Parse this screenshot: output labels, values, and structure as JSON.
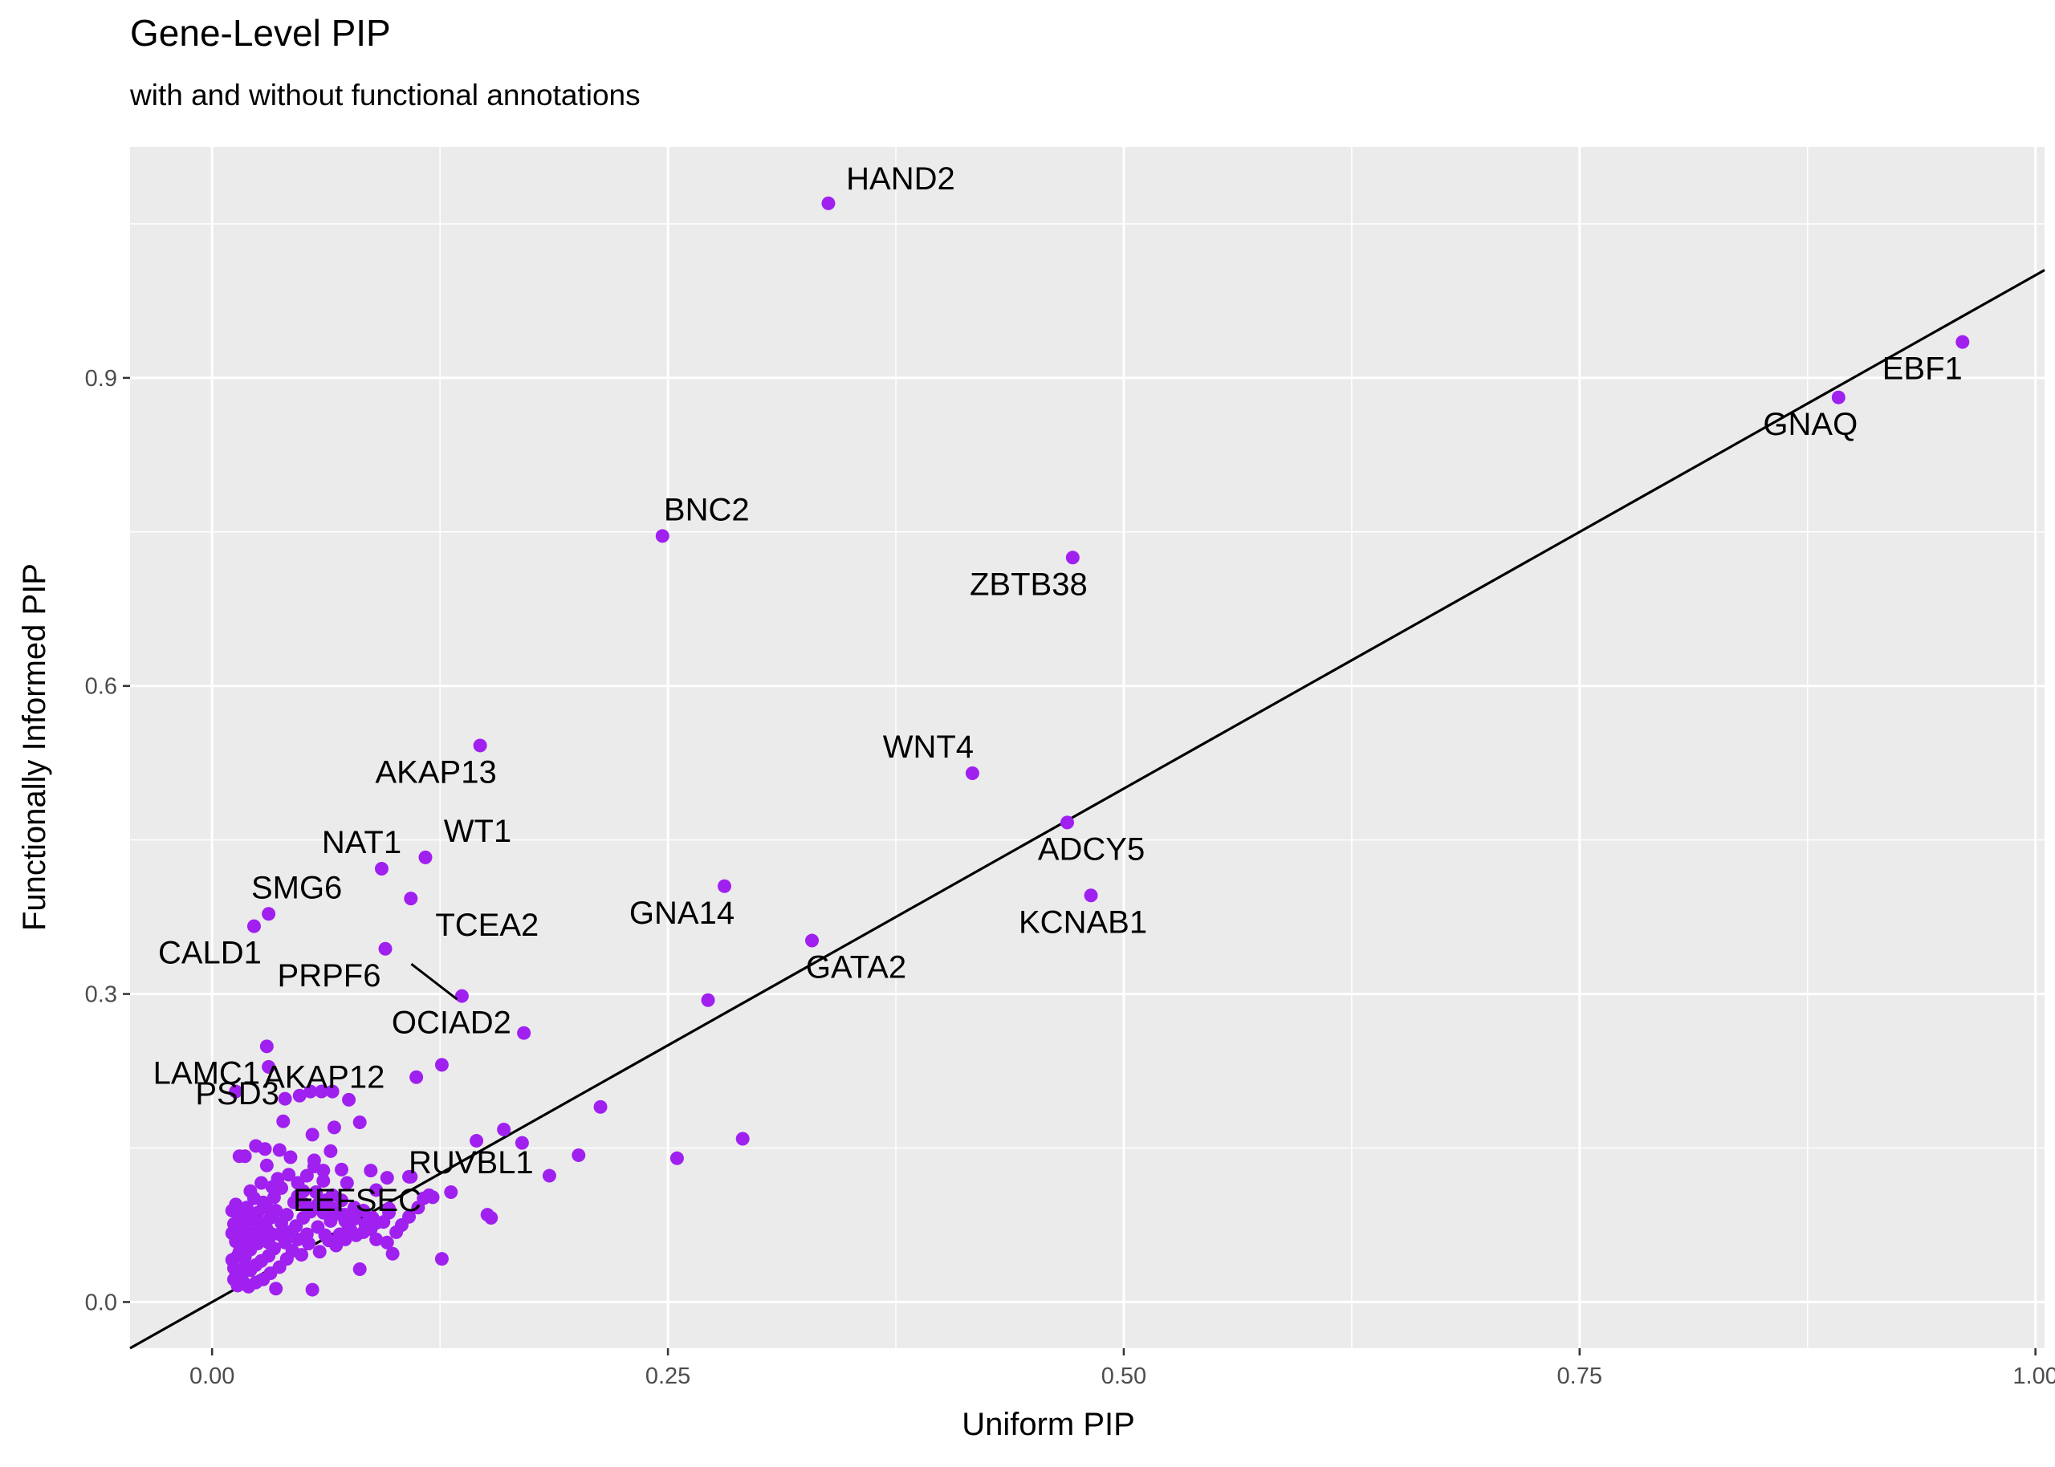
{
  "chart_data": {
    "type": "scatter",
    "title": "Gene-Level PIP",
    "subtitle": "with and without functional annotations",
    "xlabel": "Uniform PIP",
    "ylabel": "Functionally Informed PIP",
    "xlim": [
      -0.045,
      1.005
    ],
    "ylim": [
      -0.045,
      1.125
    ],
    "xticks": [
      0.0,
      0.25,
      0.5,
      0.75,
      1.0
    ],
    "xtick_labels": [
      "0.00",
      "0.25",
      "0.50",
      "0.75",
      "1.00"
    ],
    "yticks": [
      0.0,
      0.3,
      0.6,
      0.9
    ],
    "ytick_labels": [
      "0.0",
      "0.3",
      "0.6",
      "0.9"
    ],
    "grid": true,
    "point_color": "#A020F0",
    "reference_line": {
      "slope": 1,
      "intercept": 0,
      "color": "#000000"
    },
    "labeled_points": [
      {
        "label": "HAND2",
        "x": 0.338,
        "y": 1.07
      },
      {
        "label": "EBF1",
        "x": 0.96,
        "y": 0.935
      },
      {
        "label": "GNAQ",
        "x": 0.892,
        "y": 0.881
      },
      {
        "label": "BNC2",
        "x": 0.247,
        "y": 0.746
      },
      {
        "label": "ZBTB38",
        "x": 0.472,
        "y": 0.725
      },
      {
        "label": "AKAP13",
        "x": 0.147,
        "y": 0.542
      },
      {
        "label": "WNT4",
        "x": 0.417,
        "y": 0.515
      },
      {
        "label": "ADCY5",
        "x": 0.469,
        "y": 0.467
      },
      {
        "label": "NAT1",
        "x": 0.093,
        "y": 0.422
      },
      {
        "label": "WT1",
        "x": 0.117,
        "y": 0.433
      },
      {
        "label": "TCEA2",
        "x": 0.109,
        "y": 0.393
      },
      {
        "label": "GNA14",
        "x": 0.281,
        "y": 0.405
      },
      {
        "label": "KCNAB1",
        "x": 0.482,
        "y": 0.396
      },
      {
        "label": "SMG6",
        "x": 0.031,
        "y": 0.378
      },
      {
        "label": "CALD1",
        "x": 0.023,
        "y": 0.366
      },
      {
        "label": "PRPF6",
        "x": 0.095,
        "y": 0.344
      },
      {
        "label": "GATA2",
        "x": 0.329,
        "y": 0.352
      },
      {
        "label": "OCIAD2",
        "x": 0.137,
        "y": 0.298
      },
      {
        "label": "LAMC1",
        "x": 0.03,
        "y": 0.249
      },
      {
        "label": "PSD3",
        "x": 0.031,
        "y": 0.229
      },
      {
        "label": "AKAP12",
        "x": 0.013,
        "y": 0.205
      },
      {
        "label": "RUVBL1",
        "x": 0.109,
        "y": 0.122
      },
      {
        "label": "EEFSEC",
        "x": 0.073,
        "y": 0.085
      }
    ],
    "points": [
      [
        0.171,
        0.262
      ],
      [
        0.272,
        0.294
      ],
      [
        0.126,
        0.231
      ],
      [
        0.112,
        0.219
      ],
      [
        0.213,
        0.19
      ],
      [
        0.291,
        0.159
      ],
      [
        0.255,
        0.14
      ],
      [
        0.201,
        0.143
      ],
      [
        0.185,
        0.123
      ],
      [
        0.16,
        0.168
      ],
      [
        0.145,
        0.157
      ],
      [
        0.17,
        0.155
      ],
      [
        0.151,
        0.085
      ],
      [
        0.153,
        0.082
      ],
      [
        0.131,
        0.107
      ],
      [
        0.121,
        0.102
      ],
      [
        0.116,
        0.101
      ],
      [
        0.097,
        0.091
      ],
      [
        0.108,
        0.122
      ],
      [
        0.126,
        0.042
      ],
      [
        0.099,
        0.047
      ],
      [
        0.081,
        0.032
      ],
      [
        0.055,
        0.012
      ],
      [
        0.035,
        0.013
      ],
      [
        0.087,
        0.128
      ],
      [
        0.096,
        0.121
      ],
      [
        0.09,
        0.109
      ],
      [
        0.081,
        0.175
      ],
      [
        0.075,
        0.197
      ],
      [
        0.066,
        0.205
      ],
      [
        0.067,
        0.17
      ],
      [
        0.055,
        0.163
      ],
      [
        0.065,
        0.147
      ],
      [
        0.056,
        0.132
      ],
      [
        0.052,
        0.123
      ],
      [
        0.061,
        0.128
      ],
      [
        0.071,
        0.129
      ],
      [
        0.074,
        0.116
      ],
      [
        0.066,
        0.104
      ],
      [
        0.071,
        0.099
      ],
      [
        0.078,
        0.092
      ],
      [
        0.083,
        0.089
      ],
      [
        0.088,
        0.082
      ],
      [
        0.09,
        0.077
      ],
      [
        0.083,
        0.068
      ],
      [
        0.076,
        0.07
      ],
      [
        0.073,
        0.061
      ],
      [
        0.068,
        0.055
      ],
      [
        0.062,
        0.065
      ],
      [
        0.059,
        0.049
      ],
      [
        0.053,
        0.057
      ],
      [
        0.049,
        0.046
      ],
      [
        0.044,
        0.05
      ],
      [
        0.04,
        0.058
      ],
      [
        0.037,
        0.066
      ],
      [
        0.034,
        0.052
      ],
      [
        0.031,
        0.045
      ],
      [
        0.027,
        0.04
      ],
      [
        0.024,
        0.036
      ],
      [
        0.021,
        0.031
      ],
      [
        0.018,
        0.035
      ],
      [
        0.016,
        0.028
      ],
      [
        0.013,
        0.025
      ],
      [
        0.012,
        0.033
      ],
      [
        0.014,
        0.045
      ],
      [
        0.017,
        0.052
      ],
      [
        0.02,
        0.059
      ],
      [
        0.023,
        0.066
      ],
      [
        0.026,
        0.07
      ],
      [
        0.029,
        0.075
      ],
      [
        0.032,
        0.082
      ],
      [
        0.035,
        0.089
      ],
      [
        0.028,
        0.097
      ],
      [
        0.023,
        0.101
      ],
      [
        0.019,
        0.092
      ],
      [
        0.015,
        0.086
      ],
      [
        0.012,
        0.076
      ],
      [
        0.011,
        0.067
      ],
      [
        0.013,
        0.059
      ],
      [
        0.016,
        0.064
      ],
      [
        0.019,
        0.072
      ],
      [
        0.022,
        0.08
      ],
      [
        0.025,
        0.087
      ],
      [
        0.03,
        0.092
      ],
      [
        0.034,
        0.102
      ],
      [
        0.033,
        0.112
      ],
      [
        0.036,
        0.12
      ],
      [
        0.042,
        0.124
      ],
      [
        0.047,
        0.116
      ],
      [
        0.05,
        0.108
      ],
      [
        0.045,
        0.097
      ],
      [
        0.041,
        0.085
      ],
      [
        0.038,
        0.077
      ],
      [
        0.042,
        0.068
      ],
      [
        0.046,
        0.074
      ],
      [
        0.05,
        0.082
      ],
      [
        0.054,
        0.088
      ],
      [
        0.058,
        0.095
      ],
      [
        0.061,
        0.087
      ],
      [
        0.065,
        0.079
      ],
      [
        0.069,
        0.086
      ],
      [
        0.073,
        0.079
      ],
      [
        0.075,
        0.072
      ],
      [
        0.07,
        0.066
      ],
      [
        0.064,
        0.06
      ],
      [
        0.058,
        0.073
      ],
      [
        0.052,
        0.066
      ],
      [
        0.047,
        0.061
      ],
      [
        0.041,
        0.042
      ],
      [
        0.037,
        0.034
      ],
      [
        0.032,
        0.028
      ],
      [
        0.028,
        0.022
      ],
      [
        0.024,
        0.019
      ],
      [
        0.02,
        0.015
      ],
      [
        0.017,
        0.02
      ],
      [
        0.014,
        0.016
      ],
      [
        0.012,
        0.022
      ],
      [
        0.011,
        0.041
      ],
      [
        0.015,
        0.049
      ],
      [
        0.018,
        0.044
      ],
      [
        0.021,
        0.051
      ],
      [
        0.025,
        0.057
      ],
      [
        0.028,
        0.061
      ],
      [
        0.031,
        0.058
      ],
      [
        0.033,
        0.066
      ],
      [
        0.03,
        0.071
      ],
      [
        0.026,
        0.078
      ],
      [
        0.022,
        0.085
      ],
      [
        0.018,
        0.079
      ],
      [
        0.015,
        0.071
      ],
      [
        0.011,
        0.089
      ],
      [
        0.013,
        0.095
      ],
      [
        0.024,
        0.152
      ],
      [
        0.029,
        0.149
      ],
      [
        0.03,
        0.133
      ],
      [
        0.018,
        0.142
      ],
      [
        0.015,
        0.142
      ],
      [
        0.037,
        0.148
      ],
      [
        0.039,
        0.176
      ],
      [
        0.04,
        0.198
      ],
      [
        0.048,
        0.201
      ],
      [
        0.054,
        0.205
      ],
      [
        0.06,
        0.205
      ],
      [
        0.056,
        0.138
      ],
      [
        0.061,
        0.118
      ],
      [
        0.027,
        0.116
      ],
      [
        0.021,
        0.108
      ],
      [
        0.043,
        0.141
      ],
      [
        0.038,
        0.111
      ],
      [
        0.047,
        0.103
      ],
      [
        0.051,
        0.095
      ],
      [
        0.057,
        0.107
      ],
      [
        0.062,
        0.099
      ],
      [
        0.066,
        0.091
      ],
      [
        0.071,
        0.085
      ],
      [
        0.078,
        0.081
      ],
      [
        0.084,
        0.076
      ],
      [
        0.09,
        0.061
      ],
      [
        0.096,
        0.058
      ],
      [
        0.101,
        0.068
      ],
      [
        0.104,
        0.075
      ],
      [
        0.108,
        0.083
      ],
      [
        0.113,
        0.092
      ],
      [
        0.119,
        0.104
      ],
      [
        0.097,
        0.087
      ],
      [
        0.094,
        0.078
      ],
      [
        0.087,
        0.071
      ],
      [
        0.079,
        0.065
      ]
    ]
  }
}
